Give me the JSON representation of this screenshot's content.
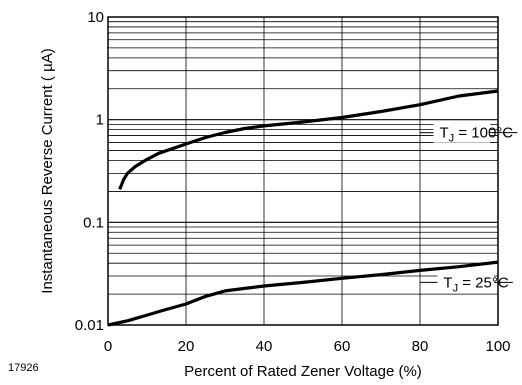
{
  "chart_data": {
    "type": "line",
    "xlabel": "Percent of Rated Zener Voltage (%)",
    "ylabel": "Instantaneous Reverse Current ( µA)",
    "xlim": [
      0,
      100
    ],
    "ylim": [
      0.01,
      10
    ],
    "yscale": "log",
    "grid": true,
    "x_ticks": [
      0,
      20,
      40,
      60,
      80,
      100
    ],
    "y_ticks": [
      0.01,
      0.1,
      1,
      10
    ],
    "x_tick_labels": [
      "0",
      "20",
      "40",
      "60",
      "80",
      "100"
    ],
    "y_tick_labels": [
      "0.01",
      "0.1",
      "1",
      "10"
    ],
    "series": [
      {
        "name": "TJ = 100°C",
        "label_main": "T",
        "label_sub": "J",
        "label_rest": " = 100°C",
        "x": [
          3,
          4,
          5,
          7,
          10,
          13,
          17,
          20,
          25,
          30,
          35,
          40,
          50,
          60,
          70,
          80,
          90,
          100
        ],
        "y": [
          0.21,
          0.26,
          0.3,
          0.35,
          0.41,
          0.47,
          0.53,
          0.58,
          0.67,
          0.75,
          0.82,
          0.87,
          0.95,
          1.05,
          1.2,
          1.4,
          1.7,
          1.9
        ]
      },
      {
        "name": "TJ = 25°C",
        "label_main": "T",
        "label_sub": "J",
        "label_rest": " = 25°C",
        "x": [
          0,
          5,
          10,
          15,
          20,
          25,
          30,
          40,
          50,
          60,
          70,
          80,
          90,
          100
        ],
        "y": [
          0.01,
          0.011,
          0.0125,
          0.0142,
          0.016,
          0.019,
          0.0215,
          0.024,
          0.026,
          0.0285,
          0.031,
          0.034,
          0.037,
          0.041
        ]
      }
    ]
  },
  "figure_code": "17926"
}
